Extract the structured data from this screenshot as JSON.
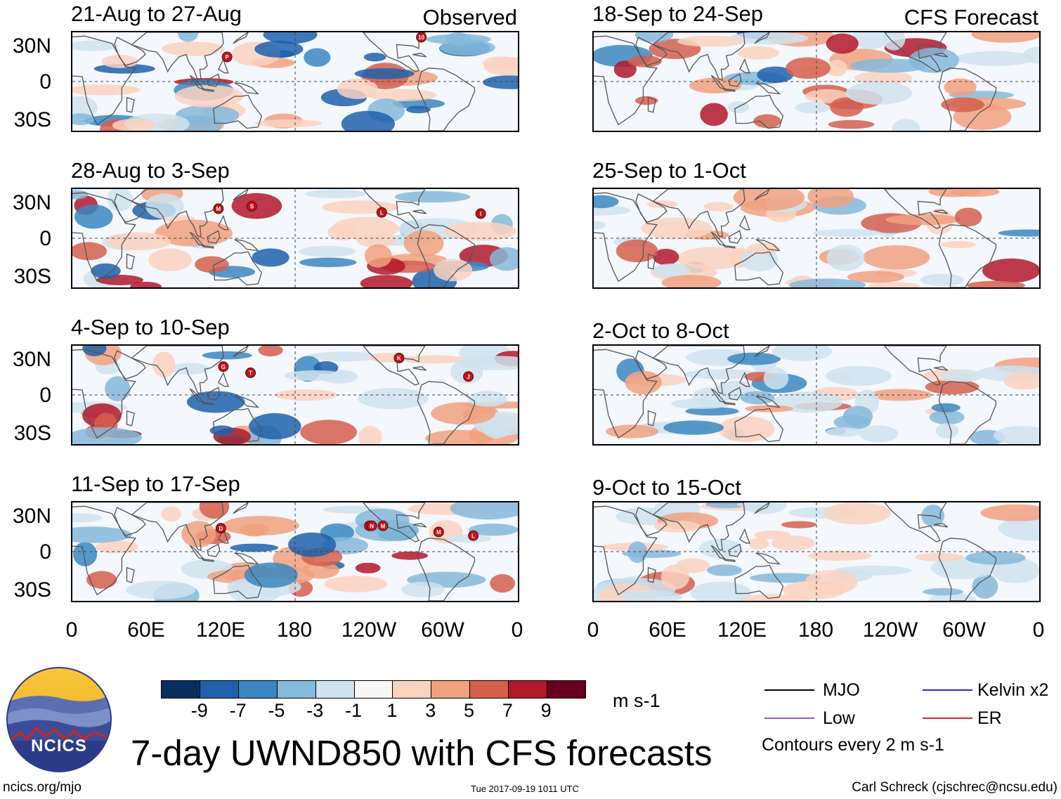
{
  "panels_observed": [
    {
      "period": "21-Aug to 27-Aug",
      "tag": "Observed",
      "storms": [
        {
          "label": "P",
          "lon": 125,
          "lat": 20
        },
        {
          "label": "10",
          "lon": 282,
          "lat": 36
        }
      ]
    },
    {
      "period": "28-Aug to 3-Sep",
      "tag": "",
      "storms": [
        {
          "label": "M",
          "lon": 118,
          "lat": 24
        },
        {
          "label": "S",
          "lon": 145,
          "lat": 26
        },
        {
          "label": "L",
          "lon": 250,
          "lat": 21
        },
        {
          "label": "I",
          "lon": 330,
          "lat": 20
        }
      ]
    },
    {
      "period": "4-Sep to 10-Sep",
      "tag": "",
      "storms": [
        {
          "label": "G",
          "lon": 122,
          "lat": 23
        },
        {
          "label": "T",
          "lon": 144,
          "lat": 18
        },
        {
          "label": "K",
          "lon": 264,
          "lat": 30
        },
        {
          "label": "J",
          "lon": 320,
          "lat": 15
        }
      ]
    },
    {
      "period": "11-Sep to 17-Sep",
      "tag": "",
      "storms": [
        {
          "label": "D",
          "lon": 120,
          "lat": 19
        },
        {
          "label": "O",
          "lon": 240,
          "lat": 21
        },
        {
          "label": "N",
          "lon": 242,
          "lat": 21
        },
        {
          "label": "M",
          "lon": 251,
          "lat": 21
        },
        {
          "label": "M",
          "lon": 296,
          "lat": 16
        },
        {
          "label": "L",
          "lon": 324,
          "lat": 13
        }
      ]
    }
  ],
  "panels_forecast": [
    {
      "period": "18-Sep to 24-Sep",
      "tag": "CFS Forecast"
    },
    {
      "period": "25-Sep to 1-Oct",
      "tag": ""
    },
    {
      "period": "2-Oct to 8-Oct",
      "tag": ""
    },
    {
      "period": "9-Oct to 15-Oct",
      "tag": ""
    }
  ],
  "lat_ticks": [
    "30N",
    "0",
    "30S"
  ],
  "lon_ticks": [
    "0",
    "60E",
    "120E",
    "180",
    "120W",
    "60W",
    "0"
  ],
  "colorbar": {
    "labels": [
      "-9",
      "-7",
      "-5",
      "-3",
      "-1",
      "1",
      "3",
      "5",
      "7",
      "9"
    ],
    "colors": [
      "#08305f",
      "#1d62ab",
      "#3a87c1",
      "#85b9da",
      "#cfe3ef",
      "#f7f7f7",
      "#fad2bf",
      "#f0a17f",
      "#d55f4d",
      "#b1182b",
      "#67001f"
    ],
    "units": "m s-1"
  },
  "title": "7-day UWND850 with CFS forecasts",
  "logo_text": "NCICS",
  "url": "ncics.org/mjo",
  "timestamp": "Tue 2017-09-19 1011 UTC",
  "author": "Carl Schreck (cjschrec@ncsu.edu)",
  "legend": {
    "items": [
      {
        "label": "MJO",
        "color": "#000000"
      },
      {
        "label": "Kelvin x2",
        "color": "#1f2fd0"
      },
      {
        "label": "Low",
        "color": "#9a4fe0"
      },
      {
        "label": "ER",
        "color": "#e0241e"
      }
    ],
    "contours_note": "Contours every 2 m s-1"
  }
}
